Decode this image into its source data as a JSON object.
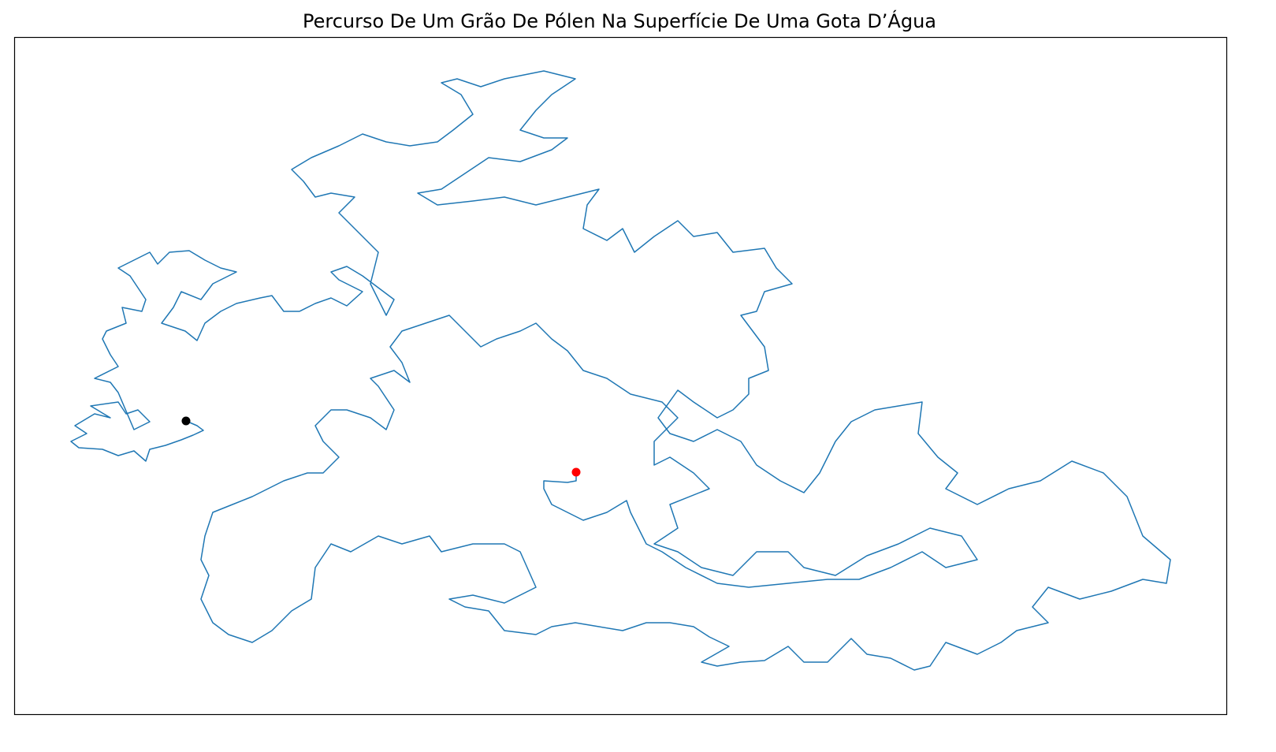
{
  "chart_data": {
    "type": "line",
    "title": "Percurso De Um Grão De Pólen Na Superfície De Uma Gota D’Água",
    "xlim": [
      18,
      1556
    ],
    "ylim": [
      906,
      47
    ],
    "series": [
      {
        "color": "#1f77b4",
        "x": [
          236,
          250,
          258,
          245,
          230,
          210,
          190,
          185,
          170,
          150,
          130,
          100,
          90,
          110,
          95,
          120,
          140,
          115,
          150,
          160,
          175,
          190,
          170,
          150,
          140,
          120,
          150,
          140,
          130,
          135,
          160,
          155,
          180,
          185,
          165,
          150,
          170,
          190,
          200,
          215,
          240,
          260,
          280,
          300,
          270,
          255,
          230,
          220,
          205,
          235,
          250,
          260,
          280,
          300,
          330,
          345,
          360,
          380,
          400,
          420,
          440,
          460,
          430,
          420,
          440,
          460,
          480,
          500,
          490,
          480,
          470,
          480,
          460,
          440,
          430,
          450,
          420,
          400,
          385,
          370,
          395,
          430,
          460,
          490,
          520,
          555,
          575,
          600,
          585,
          560,
          580,
          610,
          640,
          690,
          730,
          700,
          680,
          660,
          690,
          720,
          700,
          660,
          620,
          590,
          560,
          530,
          555,
          600,
          640,
          680,
          720,
          760,
          745,
          740,
          770,
          790,
          805,
          830,
          860,
          880,
          910,
          930,
          970,
          985,
          1005,
          970,
          960,
          940,
          955,
          970,
          975,
          950,
          950,
          930,
          910,
          880,
          860,
          835,
          850,
          880,
          910,
          940,
          960,
          990,
          1020,
          1040,
          1060,
          1080,
          1110,
          1140,
          1170,
          1165,
          1190,
          1215,
          1200,
          1240,
          1280,
          1320,
          1360,
          1400,
          1430,
          1450,
          1485,
          1480,
          1450,
          1410,
          1370,
          1330,
          1310,
          1330,
          1290,
          1270,
          1240,
          1200,
          1180,
          1160,
          1130,
          1100,
          1080,
          1050,
          1020,
          1000,
          970,
          940,
          910,
          890,
          925,
          900,
          880,
          850,
          820,
          790,
          760,
          730,
          700,
          680,
          640,
          620,
          590,
          570,
          600,
          640,
          680,
          660,
          640,
          600,
          560,
          545,
          510,
          480,
          445,
          420,
          400,
          395,
          370,
          345,
          320,
          290,
          270,
          255,
          265,
          255,
          260,
          270,
          295,
          320,
          360,
          390,
          410,
          430,
          410,
          400,
          420,
          440,
          470,
          490,
          500,
          480,
          470,
          500,
          520,
          510,
          495,
          510,
          540,
          570,
          590,
          610,
          630,
          660,
          680,
          700,
          720,
          740,
          770,
          800,
          840,
          860,
          830,
          830,
          850,
          880,
          900,
          850,
          860,
          830,
          860,
          890,
          930,
          960,
          1000,
          1020,
          1060,
          1100,
          1140,
          1180,
          1220,
          1240,
          1200,
          1170,
          1130,
          1090,
          1050,
          1000,
          950,
          910,
          870,
          840,
          820,
          800,
          795,
          770,
          740,
          720,
          700,
          690,
          690,
          720,
          731,
          731
        ],
        "y": [
          534,
          540,
          546,
          552,
          558,
          565,
          570,
          585,
          572,
          578,
          570,
          568,
          560,
          550,
          540,
          525,
          530,
          515,
          510,
          525,
          520,
          535,
          545,
          498,
          485,
          480,
          465,
          450,
          430,
          420,
          410,
          390,
          395,
          380,
          350,
          340,
          330,
          320,
          335,
          320,
          318,
          330,
          340,
          345,
          360,
          380,
          370,
          390,
          410,
          420,
          432,
          410,
          395,
          385,
          378,
          375,
          395,
          395,
          385,
          378,
          388,
          370,
          355,
          345,
          338,
          350,
          365,
          380,
          400,
          380,
          360,
          320,
          300,
          280,
          270,
          250,
          245,
          250,
          230,
          215,
          200,
          185,
          170,
          180,
          185,
          180,
          165,
          145,
          120,
          105,
          100,
          110,
          100,
          90,
          100,
          120,
          140,
          165,
          175,
          175,
          190,
          205,
          200,
          220,
          240,
          245,
          260,
          255,
          250,
          260,
          250,
          240,
          260,
          290,
          305,
          290,
          320,
          300,
          280,
          300,
          295,
          320,
          315,
          340,
          360,
          370,
          395,
          400,
          420,
          440,
          470,
          480,
          500,
          520,
          530,
          510,
          495,
          530,
          550,
          560,
          545,
          560,
          590,
          610,
          625,
          600,
          560,
          535,
          520,
          515,
          510,
          550,
          580,
          600,
          620,
          640,
          620,
          610,
          585,
          600,
          630,
          680,
          710,
          740,
          735,
          750,
          760,
          745,
          770,
          790,
          800,
          815,
          830,
          815,
          845,
          850,
          835,
          830,
          810,
          840,
          840,
          820,
          838,
          840,
          845,
          840,
          820,
          808,
          795,
          790,
          790,
          800,
          795,
          790,
          795,
          805,
          800,
          775,
          770,
          760,
          755,
          765,
          745,
          700,
          690,
          690,
          700,
          680,
          690,
          680,
          700,
          690,
          720,
          760,
          775,
          800,
          815,
          805,
          790,
          760,
          730,
          710,
          680,
          650,
          640,
          630,
          610,
          600,
          600,
          580,
          560,
          540,
          520,
          520,
          530,
          545,
          520,
          490,
          480,
          470,
          485,
          460,
          440,
          420,
          410,
          400,
          420,
          440,
          430,
          420,
          410,
          430,
          445,
          470,
          480,
          500,
          510,
          530,
          560,
          590,
          580,
          600,
          620,
          640,
          670,
          690,
          700,
          720,
          730,
          700,
          700,
          720,
          730,
          705,
          690,
          670,
          680,
          710,
          720,
          700,
          720,
          735,
          735,
          740,
          745,
          740,
          720,
          700,
          690,
          650,
          635,
          650,
          660,
          650,
          640,
          620,
          610,
          612,
          610,
          599
        ]
      }
    ],
    "start": {
      "x": 236,
      "y": 534,
      "color": "#000000"
    },
    "end": {
      "x": 731,
      "y": 599,
      "color": "#ff0000"
    }
  }
}
